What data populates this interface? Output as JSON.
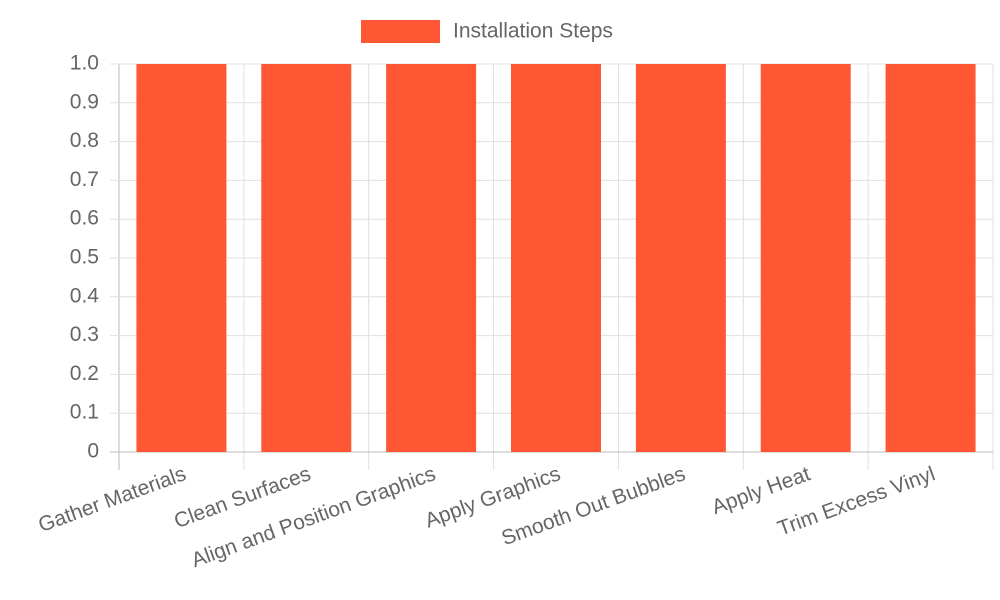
{
  "chart_data": {
    "type": "bar",
    "categories": [
      "Gather Materials",
      "Clean Surfaces",
      "Align and Position Graphics",
      "Apply Graphics",
      "Smooth Out Bubbles",
      "Apply Heat",
      "Trim Excess Vinyl"
    ],
    "series": [
      {
        "name": "Installation Steps",
        "color": "#ff5733",
        "values": [
          1,
          1,
          1,
          1,
          1,
          1,
          1
        ]
      }
    ],
    "ylim": [
      0,
      1
    ],
    "yticks": [
      0,
      0.1,
      0.2,
      0.3,
      0.4,
      0.5,
      0.6,
      0.7,
      0.8,
      0.9,
      {
        "value": 1,
        "label": "1.0"
      }
    ],
    "grid": true,
    "legend": "top"
  }
}
